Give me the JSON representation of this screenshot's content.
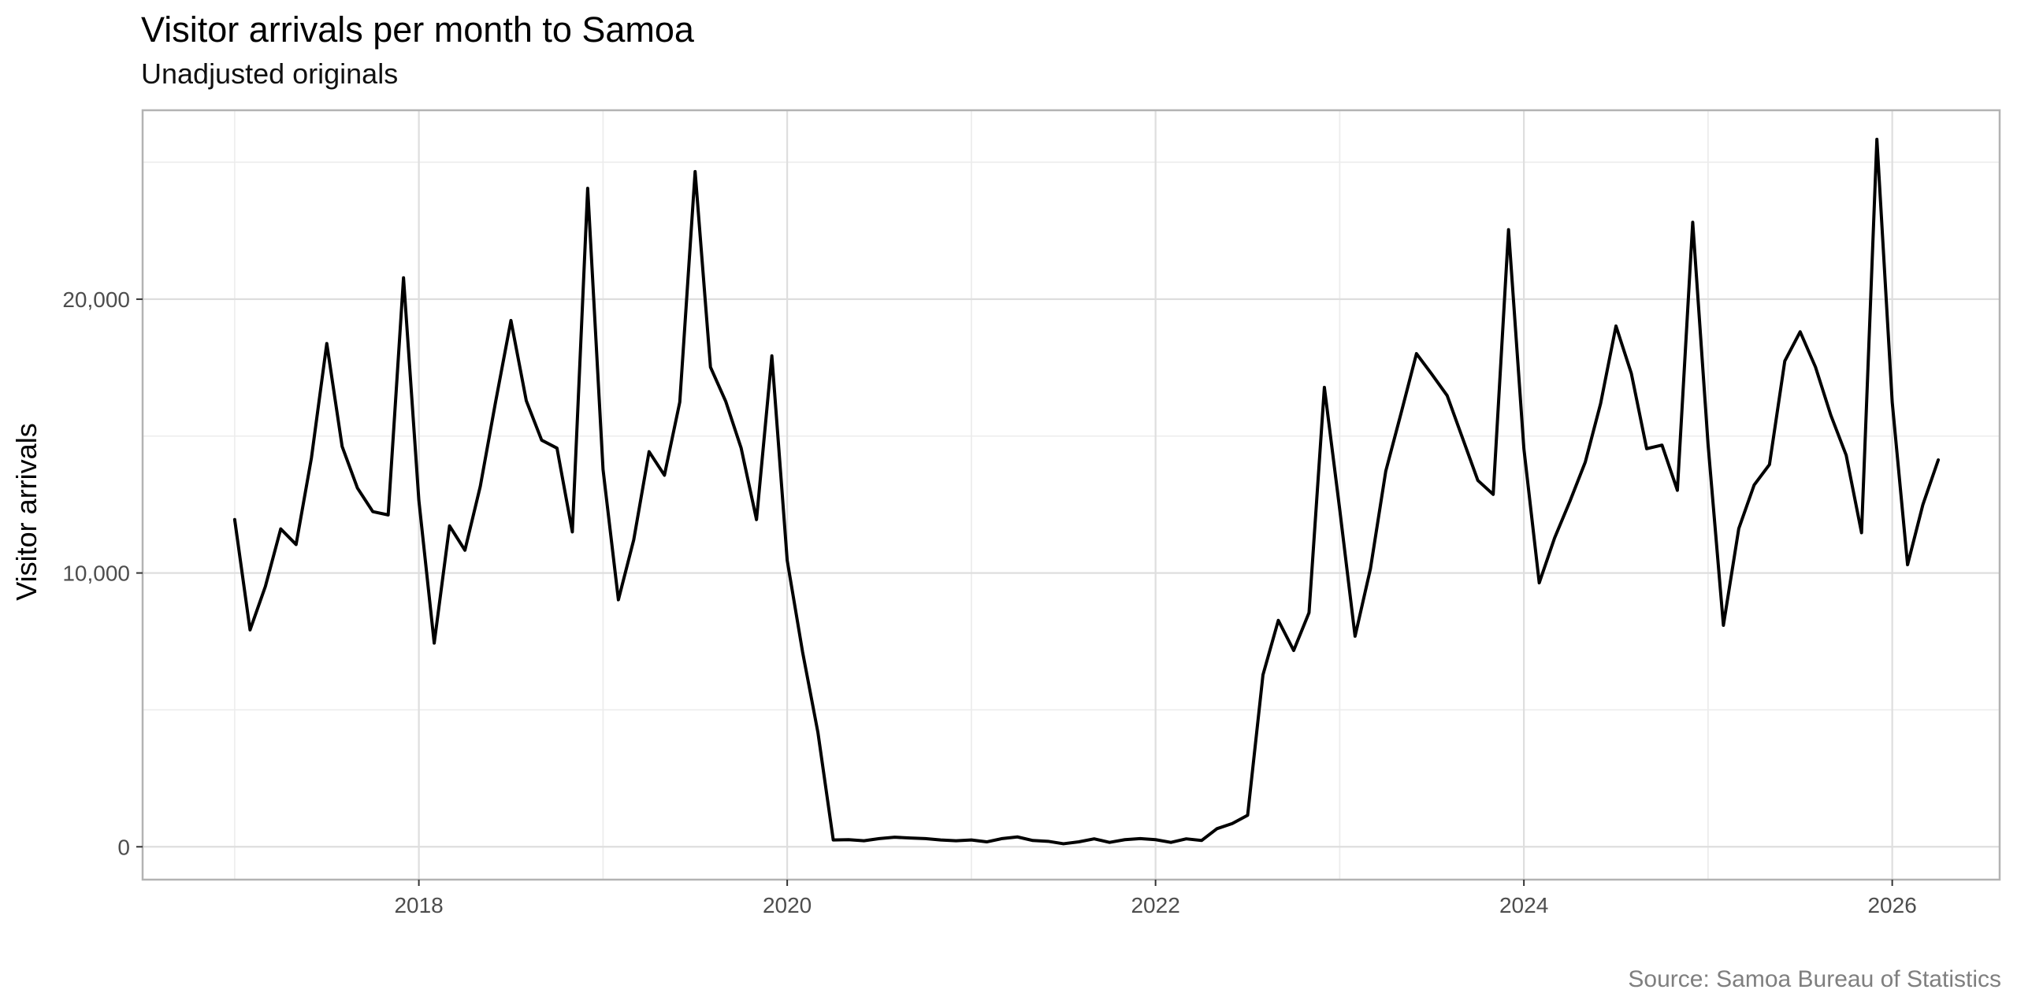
{
  "chart_data": {
    "type": "line",
    "title": "Visitor arrivals per month to Samoa",
    "subtitle": "Unadjusted originals",
    "xlabel": "",
    "ylabel": "Visitor arrivals",
    "caption": "Source: Samoa Bureau of Statistics",
    "xlim": [
      "2016-07",
      "2026-08"
    ],
    "ylim": [
      -1200,
      26900
    ],
    "x_ticks": [
      {
        "value": "2018-01",
        "label": "2018"
      },
      {
        "value": "2020-01",
        "label": "2020"
      },
      {
        "value": "2022-01",
        "label": "2022"
      },
      {
        "value": "2024-01",
        "label": "2024"
      },
      {
        "value": "2026-01",
        "label": "2026"
      }
    ],
    "y_ticks": [
      {
        "value": 0,
        "label": "0"
      },
      {
        "value": 10000,
        "label": "10,000"
      },
      {
        "value": 20000,
        "label": "20,000"
      }
    ],
    "grid": true,
    "line_color": "#000000",
    "series": [
      {
        "x": [
          "2017-01",
          "2017-02",
          "2017-03",
          "2017-04",
          "2017-05",
          "2017-06",
          "2017-07",
          "2017-08",
          "2017-09",
          "2017-10",
          "2017-11",
          "2017-12",
          "2018-01",
          "2018-02",
          "2018-03",
          "2018-04",
          "2018-05",
          "2018-06",
          "2018-07",
          "2018-08",
          "2018-09",
          "2018-10",
          "2018-11",
          "2018-12",
          "2019-01",
          "2019-02",
          "2019-03",
          "2019-04",
          "2019-05",
          "2019-06",
          "2019-07",
          "2019-08",
          "2019-09",
          "2019-10",
          "2019-11",
          "2019-12",
          "2020-01",
          "2020-02",
          "2020-03",
          "2020-04",
          "2020-05",
          "2020-06",
          "2020-07",
          "2020-08",
          "2020-09",
          "2020-10",
          "2020-11",
          "2020-12",
          "2021-01",
          "2021-02",
          "2021-03",
          "2021-04",
          "2021-05",
          "2021-06",
          "2021-07",
          "2021-08",
          "2021-09",
          "2021-10",
          "2021-11",
          "2021-12",
          "2022-01",
          "2022-02",
          "2022-03",
          "2022-04",
          "2022-05",
          "2022-06",
          "2022-07",
          "2022-08",
          "2022-09",
          "2022-10",
          "2022-11",
          "2022-12",
          "2023-01",
          "2023-02",
          "2023-03",
          "2023-04",
          "2023-05",
          "2023-06",
          "2023-07",
          "2023-08",
          "2023-09",
          "2023-10",
          "2023-11",
          "2023-12",
          "2024-01",
          "2024-02",
          "2024-03",
          "2024-04",
          "2024-05",
          "2024-06",
          "2024-07",
          "2024-08",
          "2024-09",
          "2024-10",
          "2024-11",
          "2024-12",
          "2025-01",
          "2025-02",
          "2025-03",
          "2025-04",
          "2025-05",
          "2025-06",
          "2025-07",
          "2025-08",
          "2025-09",
          "2025-10",
          "2025-11",
          "2025-12",
          "2026-01",
          "2026-02",
          "2026-03",
          "2026-04"
        ],
        "values": [
          11950,
          7920,
          9510,
          11610,
          11040,
          14200,
          18380,
          14620,
          13100,
          12240,
          12120,
          20780,
          12650,
          7440,
          11720,
          10830,
          13160,
          16250,
          19220,
          16290,
          14850,
          14560,
          11500,
          24050,
          13780,
          9020,
          11210,
          14430,
          13570,
          16240,
          24660,
          17520,
          16260,
          14560,
          11950,
          17930,
          10460,
          7120,
          4180,
          250,
          260,
          220,
          300,
          350,
          320,
          300,
          250,
          220,
          250,
          180,
          300,
          360,
          230,
          200,
          110,
          180,
          290,
          160,
          260,
          300,
          260,
          160,
          290,
          230,
          660,
          850,
          1150,
          6280,
          8270,
          7170,
          8550,
          16780,
          12320,
          7690,
          10150,
          13720,
          15840,
          18010,
          17260,
          16480,
          14930,
          13380,
          12870,
          22540,
          14540,
          9640,
          11280,
          12620,
          14050,
          16190,
          19020,
          17290,
          14540,
          14670,
          13020,
          22810,
          14700,
          8090,
          11620,
          13210,
          13960,
          17740,
          18810,
          17520,
          15760,
          14300,
          11470,
          25840,
          16230,
          10300,
          12500,
          14130
        ]
      }
    ]
  }
}
